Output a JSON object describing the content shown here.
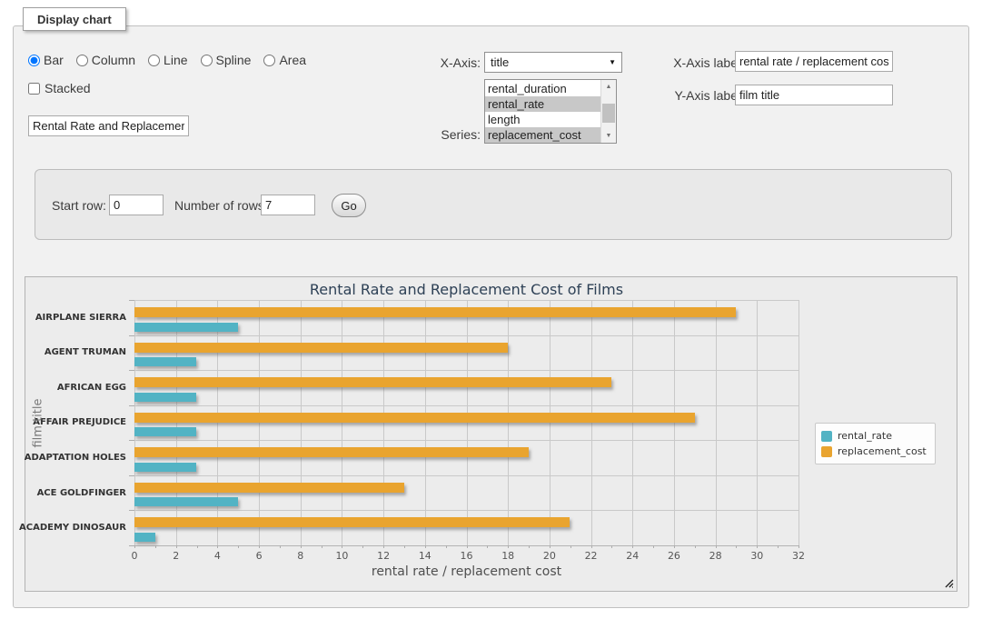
{
  "panel": {
    "legend_tab": "Display chart"
  },
  "controls": {
    "chart_type_options": [
      "Bar",
      "Column",
      "Line",
      "Spline",
      "Area"
    ],
    "chart_type_selected": "Bar",
    "stacked_label": "Stacked",
    "stacked_checked": false,
    "chart_title_value": "Rental Rate and Replacemer",
    "x_axis_field_label": "X-Axis:",
    "x_axis_selected_option": "title",
    "series_field_label": "Series:",
    "series_options": [
      {
        "label": "rental_duration",
        "selected": false
      },
      {
        "label": "rental_rate",
        "selected": true
      },
      {
        "label": "length",
        "selected": false
      },
      {
        "label": "replacement_cost",
        "selected": true
      }
    ],
    "x_axis_label_label": "X-Axis label:",
    "x_axis_label_value": "rental rate / replacement cost",
    "y_axis_label_label": "Y-Axis label:",
    "y_axis_label_value": "film title"
  },
  "row_controls": {
    "start_row_label": "Start row:",
    "start_row_value": "0",
    "num_rows_label": "Number of rows:",
    "num_rows_value": "7",
    "go_label": "Go"
  },
  "chart_data": {
    "type": "bar",
    "title": "Rental Rate and Replacement Cost of Films",
    "xlabel": "rental rate / replacement cost",
    "ylabel": "film title",
    "categories": [
      "AIRPLANE SIERRA",
      "AGENT TRUMAN",
      "AFRICAN EGG",
      "AFFAIR PREJUDICE",
      "ADAPTATION HOLES",
      "ACE GOLDFINGER",
      "ACADEMY DINOSAUR"
    ],
    "series": [
      {
        "name": "rental_rate",
        "color": "#52b3c4",
        "values": [
          4.99,
          2.99,
          2.99,
          2.99,
          2.99,
          4.99,
          0.99
        ]
      },
      {
        "name": "replacement_cost",
        "color": "#e9a42f",
        "values": [
          28.99,
          17.99,
          22.99,
          26.99,
          18.99,
          12.99,
          20.99
        ]
      }
    ],
    "xlim": [
      0,
      32
    ],
    "x_tick_step": 2,
    "x_minor_tick_step": 1,
    "grid": true,
    "legend_position": "right",
    "series_draw_order": [
      "replacement_cost",
      "rental_rate"
    ]
  }
}
